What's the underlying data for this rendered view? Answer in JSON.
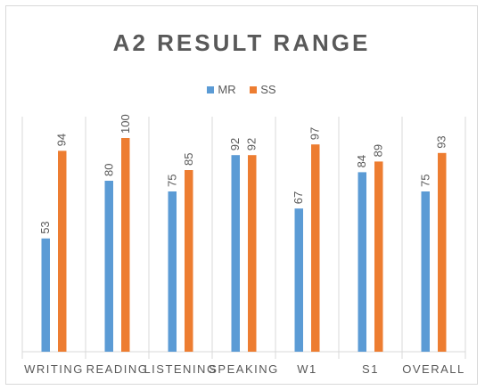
{
  "chart_data": {
    "type": "bar",
    "title": "A2 RESULT RANGE",
    "categories": [
      "WRITING",
      "READING",
      "LISTENING",
      "SPEAKING",
      "W1",
      "S1",
      "OVERALL"
    ],
    "series": [
      {
        "name": "MR",
        "color": "#5b9bd5",
        "values": [
          53,
          80,
          75,
          92,
          67,
          84,
          75
        ]
      },
      {
        "name": "SS",
        "color": "#ed7d31",
        "values": [
          94,
          100,
          85,
          92,
          97,
          89,
          93
        ]
      }
    ],
    "ylim": [
      0,
      110
    ],
    "xlabel": "",
    "ylabel": "",
    "legend_position": "top",
    "grid": false,
    "category_separators": true
  }
}
